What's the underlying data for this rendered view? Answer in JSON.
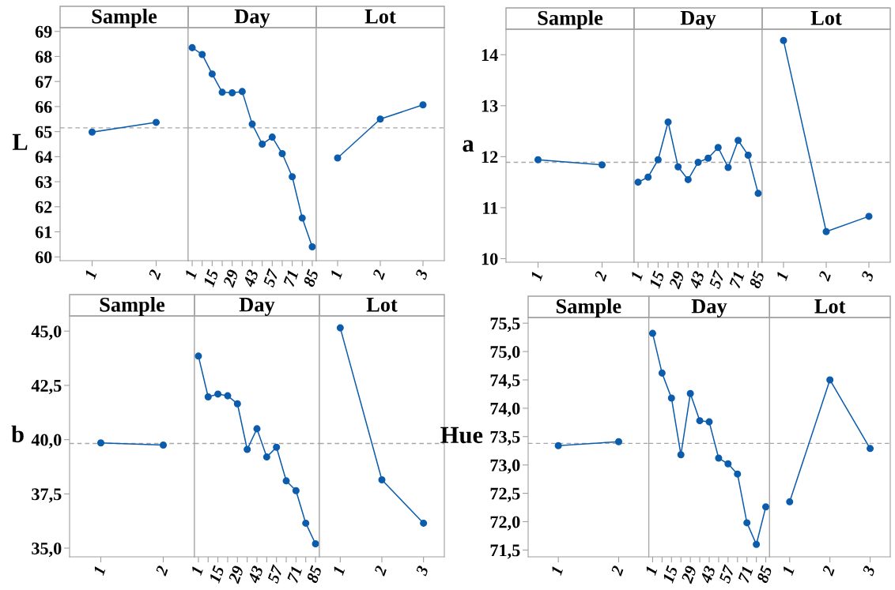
{
  "chart_data": [
    {
      "type": "line",
      "title": "Sample",
      "ylabel": "L",
      "categories": [
        "1",
        "2"
      ],
      "values": [
        64.98,
        65.37
      ],
      "color": "#0b5cad",
      "marker": "circle",
      "ylim": [
        59.85,
        69.15
      ],
      "yticks": [
        60,
        61,
        62,
        63,
        64,
        65,
        66,
        67,
        68,
        69
      ],
      "ref_lines": [
        {
          "axis": "y",
          "value": 65.15,
          "color": "#a6a6a6",
          "line_style": "dashed"
        }
      ],
      "grid": false,
      "legend": false
    },
    {
      "type": "line",
      "title": "Day",
      "categories": [
        "1",
        null,
        "15",
        null,
        "29",
        null,
        "43",
        null,
        "57",
        null,
        "71",
        null,
        "85"
      ],
      "values": [
        68.35,
        68.08,
        67.3,
        66.57,
        66.55,
        66.6,
        65.3,
        64.5,
        64.78,
        64.12,
        63.2,
        61.55,
        60.4
      ],
      "color": "#0b5cad",
      "marker": "circle",
      "ylim": [
        59.85,
        69.15
      ],
      "tick_labels": "x",
      "ref_lines": [
        {
          "axis": "y",
          "value": 65.15,
          "color": "#a6a6a6",
          "line_style": "dashed"
        }
      ],
      "grid": false,
      "legend": false
    },
    {
      "type": "line",
      "title": "Lot",
      "categories": [
        "1",
        "2",
        "3"
      ],
      "values": [
        63.95,
        65.5,
        66.07
      ],
      "color": "#0b5cad",
      "marker": "circle",
      "ylim": [
        59.85,
        69.15
      ],
      "tick_labels": "x",
      "ref_lines": [
        {
          "axis": "y",
          "value": 65.15,
          "color": "#a6a6a6",
          "line_style": "dashed"
        }
      ],
      "grid": false,
      "legend": false
    },
    {
      "type": "line",
      "title": "Sample",
      "ylabel": "a",
      "categories": [
        "1",
        "2"
      ],
      "values": [
        11.94,
        11.84
      ],
      "color": "#0b5cad",
      "marker": "circle",
      "ylim": [
        9.93,
        14.5
      ],
      "yticks": [
        10,
        11,
        12,
        13,
        14
      ],
      "ref_lines": [
        {
          "axis": "y",
          "value": 11.89,
          "color": "#a6a6a6",
          "line_style": "dashed"
        }
      ],
      "grid": false,
      "legend": false
    },
    {
      "type": "line",
      "title": "Day",
      "categories": [
        "1",
        null,
        "15",
        null,
        "29",
        null,
        "43",
        null,
        "57",
        null,
        "71",
        null,
        "85"
      ],
      "values": [
        11.5,
        11.6,
        11.94,
        12.68,
        11.8,
        11.55,
        11.89,
        11.97,
        12.18,
        11.79,
        12.32,
        12.03,
        11.28
      ],
      "color": "#0b5cad",
      "marker": "circle",
      "ylim": [
        9.93,
        14.5
      ],
      "tick_labels": "x",
      "ref_lines": [
        {
          "axis": "y",
          "value": 11.89,
          "color": "#a6a6a6",
          "line_style": "dashed"
        }
      ],
      "grid": false,
      "legend": false
    },
    {
      "type": "line",
      "title": "Lot",
      "categories": [
        "1",
        "2",
        "3"
      ],
      "values": [
        14.28,
        10.53,
        10.83
      ],
      "color": "#0b5cad",
      "marker": "circle",
      "ylim": [
        9.93,
        14.5
      ],
      "tick_labels": "x",
      "ref_lines": [
        {
          "axis": "y",
          "value": 11.89,
          "color": "#a6a6a6",
          "line_style": "dashed"
        }
      ],
      "grid": false,
      "legend": false
    },
    {
      "type": "line",
      "title": "Sample",
      "ylabel": "b",
      "categories": [
        "1",
        "2"
      ],
      "values": [
        39.85,
        39.75
      ],
      "color": "#0b5cad",
      "marker": "circle",
      "ylim": [
        34.6,
        45.7
      ],
      "yticks": [
        {
          "value": 35,
          "label": "35,0"
        },
        {
          "value": 37.5,
          "label": "37,5"
        },
        {
          "value": 40,
          "label": "40,0"
        },
        {
          "value": 42.5,
          "label": "42,5"
        },
        {
          "value": 45,
          "label": "45,0"
        }
      ],
      "ref_lines": [
        {
          "axis": "y",
          "value": 39.82,
          "color": "#a6a6a6",
          "line_style": "dashed"
        }
      ],
      "grid": false,
      "legend": false
    },
    {
      "type": "line",
      "title": "Day",
      "categories": [
        "1",
        null,
        "15",
        null,
        "29",
        null,
        "43",
        null,
        "57",
        null,
        "71",
        null,
        "85"
      ],
      "values": [
        43.85,
        41.97,
        42.1,
        42.02,
        41.65,
        39.55,
        40.5,
        39.2,
        39.65,
        38.1,
        37.65,
        36.15,
        35.2
      ],
      "color": "#0b5cad",
      "marker": "circle",
      "ylim": [
        34.6,
        45.7
      ],
      "tick_labels": "x",
      "ref_lines": [
        {
          "axis": "y",
          "value": 39.82,
          "color": "#a6a6a6",
          "line_style": "dashed"
        }
      ],
      "grid": false,
      "legend": false
    },
    {
      "type": "line",
      "title": "Lot",
      "categories": [
        "1",
        "2",
        "3"
      ],
      "values": [
        45.15,
        38.15,
        36.15
      ],
      "color": "#0b5cad",
      "marker": "circle",
      "ylim": [
        34.6,
        45.7
      ],
      "tick_labels": "x",
      "ref_lines": [
        {
          "axis": "y",
          "value": 39.82,
          "color": "#a6a6a6",
          "line_style": "dashed"
        }
      ],
      "grid": false,
      "legend": false
    },
    {
      "type": "line",
      "title": "Sample",
      "ylabel": "Hue",
      "categories": [
        "1",
        "2"
      ],
      "values": [
        73.34,
        73.41
      ],
      "color": "#0b5cad",
      "marker": "circle",
      "ylim": [
        71.38,
        75.6
      ],
      "yticks": [
        {
          "value": 71.5,
          "label": "71,5"
        },
        {
          "value": 72,
          "label": "72,0"
        },
        {
          "value": 72.5,
          "label": "72,5"
        },
        {
          "value": 73,
          "label": "73,0"
        },
        {
          "value": 73.5,
          "label": "73,5"
        },
        {
          "value": 74,
          "label": "74,0"
        },
        {
          "value": 74.5,
          "label": "74,5"
        },
        {
          "value": 75,
          "label": "75,0"
        },
        {
          "value": 75.5,
          "label": "75,5"
        }
      ],
      "ref_lines": [
        {
          "axis": "y",
          "value": 73.38,
          "color": "#a6a6a6",
          "line_style": "dashed"
        }
      ],
      "grid": false,
      "legend": false
    },
    {
      "type": "line",
      "title": "Day",
      "categories": [
        "1",
        null,
        "15",
        null,
        "29",
        null,
        "43",
        null,
        "57",
        null,
        "71",
        null,
        "85"
      ],
      "values": [
        75.32,
        74.62,
        74.18,
        73.18,
        74.26,
        73.78,
        73.76,
        73.12,
        73.02,
        72.84,
        71.98,
        71.6,
        72.26
      ],
      "color": "#0b5cad",
      "marker": "circle",
      "ylim": [
        71.38,
        75.6
      ],
      "tick_labels": "x",
      "ref_lines": [
        {
          "axis": "y",
          "value": 73.38,
          "color": "#a6a6a6",
          "line_style": "dashed"
        }
      ],
      "grid": false,
      "legend": false
    },
    {
      "type": "line",
      "title": "Lot",
      "categories": [
        "1",
        "2",
        "3"
      ],
      "values": [
        72.35,
        74.5,
        73.29
      ],
      "color": "#0b5cad",
      "marker": "circle",
      "ylim": [
        71.38,
        75.6
      ],
      "tick_labels": "x",
      "ref_lines": [
        {
          "axis": "y",
          "value": 73.38,
          "color": "#a6a6a6",
          "line_style": "dashed"
        }
      ],
      "grid": false,
      "legend": false
    }
  ]
}
